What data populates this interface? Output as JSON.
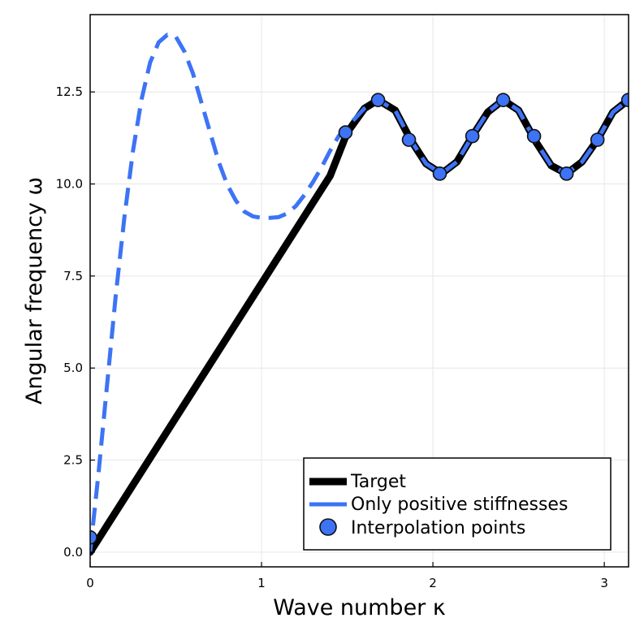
{
  "chart_data": {
    "type": "line",
    "xlabel": "Wave number κ",
    "ylabel": "Angular frequency ω",
    "xlim": [
      0,
      3.14159
    ],
    "ylim": [
      -0.4,
      14.6
    ],
    "x_ticks": [
      0,
      1,
      2,
      3
    ],
    "x_tick_labels": [
      "0",
      "1",
      "2",
      "3"
    ],
    "y_ticks": [
      0,
      2.5,
      5,
      7.5,
      10,
      12.5
    ],
    "y_tick_labels": [
      "0.0",
      "2.5",
      "5.0",
      "7.5",
      "10.0",
      "12.5"
    ],
    "grid": true,
    "legend_position": "bottom-right",
    "colors": {
      "target": "#000000",
      "positive": "#3d73f5",
      "points": "#3d73f5",
      "point_edge": "#111111"
    },
    "series": [
      {
        "name": "Target",
        "style": "solid",
        "x": [
          0,
          0.2,
          0.4,
          0.6,
          0.8,
          1.0,
          1.2,
          1.4,
          1.5,
          1.6,
          1.68,
          1.78,
          1.87,
          1.96,
          2.05,
          2.14,
          2.23,
          2.32,
          2.41,
          2.5,
          2.6,
          2.69,
          2.78,
          2.87,
          2.96,
          3.05,
          3.14
        ],
        "values": [
          0,
          1.46,
          2.92,
          4.38,
          5.84,
          7.3,
          8.76,
          10.22,
          11.4,
          12.05,
          12.28,
          12.0,
          11.2,
          10.55,
          10.28,
          10.6,
          11.3,
          11.95,
          12.28,
          12.0,
          11.15,
          10.5,
          10.28,
          10.6,
          11.2,
          11.95,
          12.28
        ]
      },
      {
        "name": "Only positive stiffnesses",
        "style": "dashed",
        "x": [
          0,
          0.05,
          0.1,
          0.15,
          0.2,
          0.25,
          0.3,
          0.35,
          0.4,
          0.45,
          0.5,
          0.55,
          0.6,
          0.65,
          0.7,
          0.75,
          0.8,
          0.85,
          0.9,
          0.95,
          1.0,
          1.05,
          1.1,
          1.15,
          1.2,
          1.25,
          1.3,
          1.35,
          1.4,
          1.45,
          1.5,
          1.6,
          1.68,
          1.78,
          1.87,
          1.96,
          2.05,
          2.14,
          2.23,
          2.32,
          2.41,
          2.5,
          2.6,
          2.69,
          2.78,
          2.87,
          2.96,
          3.05,
          3.14
        ],
        "values": [
          0,
          2.2,
          4.6,
          7.0,
          9.1,
          10.9,
          12.3,
          13.3,
          13.85,
          14.05,
          14.0,
          13.6,
          13.0,
          12.2,
          11.4,
          10.6,
          9.98,
          9.55,
          9.25,
          9.12,
          9.08,
          9.08,
          9.1,
          9.2,
          9.4,
          9.7,
          10.05,
          10.45,
          10.9,
          11.3,
          11.55,
          12.05,
          12.28,
          12.0,
          11.2,
          10.55,
          10.28,
          10.6,
          11.3,
          11.95,
          12.28,
          12.0,
          11.15,
          10.5,
          10.28,
          10.6,
          11.2,
          11.95,
          12.28
        ]
      },
      {
        "name": "Interpolation points",
        "style": "markers",
        "x": [
          0,
          1.49,
          1.68,
          1.86,
          2.04,
          2.23,
          2.41,
          2.59,
          2.78,
          2.96,
          3.14
        ],
        "values": [
          0.4,
          11.4,
          12.28,
          11.2,
          10.28,
          11.3,
          12.28,
          11.3,
          10.28,
          11.2,
          12.28
        ]
      }
    ]
  }
}
